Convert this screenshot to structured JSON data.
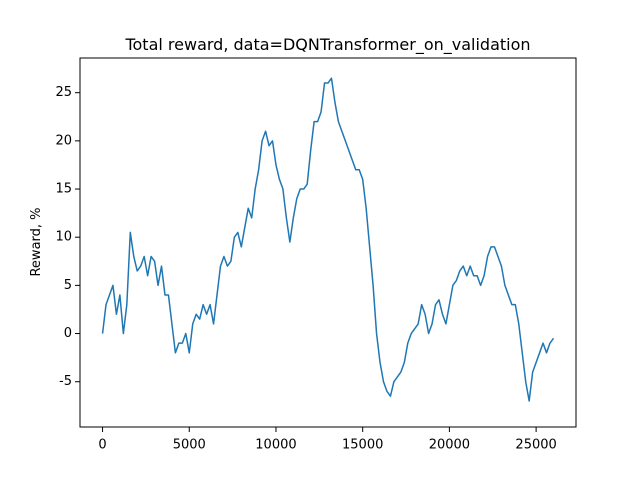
{
  "chart_data": {
    "type": "line",
    "title": "Total reward, data=DQNTransformer_on_validation",
    "y_label": "Reward, %",
    "x": [
      0,
      200,
      400,
      600,
      800,
      1000,
      1200,
      1400,
      1600,
      1800,
      2000,
      2200,
      2400,
      2600,
      2800,
      3000,
      3200,
      3400,
      3600,
      3800,
      4000,
      4200,
      4400,
      4600,
      4800,
      5000,
      5200,
      5400,
      5600,
      5800,
      6000,
      6200,
      6400,
      6600,
      6800,
      7000,
      7200,
      7400,
      7600,
      7800,
      8000,
      8200,
      8400,
      8600,
      8800,
      9000,
      9200,
      9400,
      9600,
      9800,
      10000,
      10200,
      10400,
      10600,
      10800,
      11000,
      11200,
      11400,
      11600,
      11800,
      12000,
      12200,
      12400,
      12600,
      12800,
      13000,
      13200,
      13400,
      13600,
      13800,
      14000,
      14200,
      14400,
      14600,
      14800,
      15000,
      15200,
      15400,
      15600,
      15800,
      16000,
      16200,
      16400,
      16600,
      16800,
      17000,
      17200,
      17400,
      17600,
      17800,
      18000,
      18200,
      18400,
      18600,
      18800,
      19000,
      19200,
      19400,
      19600,
      19800,
      20000,
      20200,
      20400,
      20600,
      20800,
      21000,
      21200,
      21400,
      21600,
      21800,
      22000,
      22200,
      22400,
      22600,
      22800,
      23000,
      23200,
      23400,
      23600,
      23800,
      24000,
      24200,
      24400,
      24600,
      24800,
      25000,
      25200,
      25400,
      25600,
      25800,
      26000
    ],
    "series": [
      {
        "color": "#1f77b4",
        "values": [
          0,
          3,
          4,
          5,
          2,
          4,
          0,
          3,
          10.5,
          8,
          6.5,
          7,
          8,
          6,
          8,
          7.5,
          5,
          7,
          4,
          4,
          1,
          -2,
          -1,
          -1,
          0,
          -2,
          1,
          2,
          1.5,
          3,
          2,
          3,
          1,
          4,
          7,
          8,
          7,
          7.5,
          10,
          10.5,
          9,
          11,
          13,
          12,
          15,
          17,
          20,
          21,
          19.5,
          20,
          17.5,
          16,
          15,
          12,
          9.5,
          12,
          14,
          15,
          15,
          15.5,
          19,
          22,
          22,
          23,
          26,
          26,
          26.5,
          24,
          22,
          21,
          20,
          19,
          18,
          17,
          17,
          16,
          13,
          9,
          5,
          0,
          -3,
          -5,
          -6,
          -6.5,
          -5,
          -4.5,
          -4,
          -3,
          -1,
          0,
          0.5,
          1,
          3,
          2,
          0,
          1,
          3,
          3.5,
          2,
          1,
          3,
          5,
          5.5,
          6.5,
          7,
          6,
          7,
          6,
          6,
          5,
          6,
          8,
          9,
          9,
          8,
          7,
          5,
          4,
          3,
          3,
          1,
          -2,
          -5,
          -7,
          -4,
          -3,
          -2,
          -1,
          -2,
          -1,
          -0.5
        ]
      }
    ],
    "xlim": [
      -1300,
      27300
    ],
    "ylim": [
      -9.7,
      28.6
    ],
    "xticks": [
      0,
      5000,
      10000,
      15000,
      20000,
      25000
    ],
    "yticks": [
      -5,
      0,
      5,
      10,
      15,
      20,
      25
    ]
  }
}
